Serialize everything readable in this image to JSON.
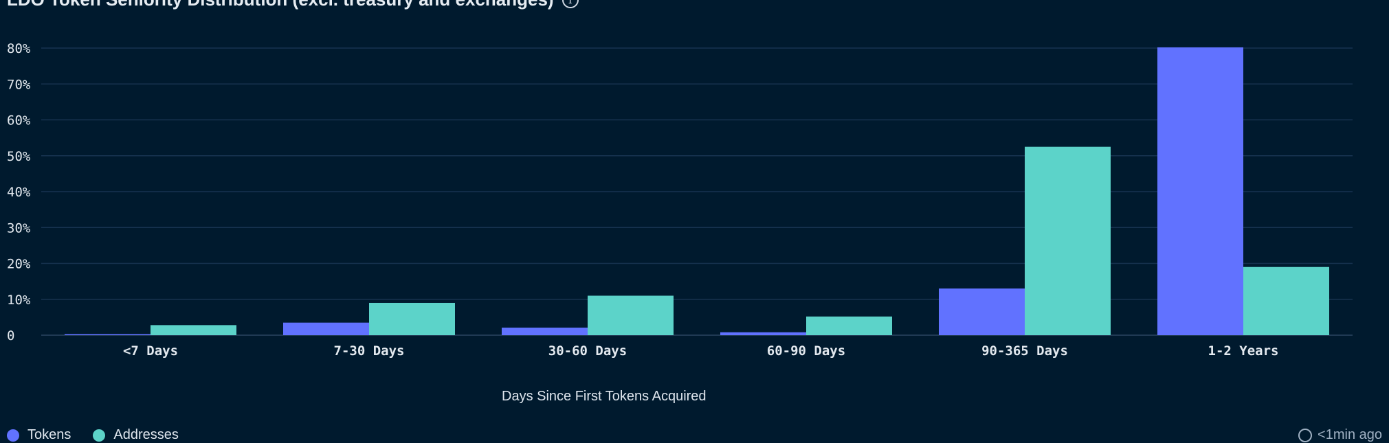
{
  "chart_data": {
    "type": "bar",
    "title": "LDO Token Seniority Distribution (excl. treasury and exchanges)",
    "xlabel": "Days Since First Tokens Acquired",
    "ylabel": "",
    "ylim": [
      0,
      80
    ],
    "yticks": [
      0,
      10,
      20,
      30,
      40,
      50,
      60,
      70,
      80
    ],
    "ytick_labels": [
      "0",
      "10%",
      "20%",
      "30%",
      "40%",
      "50%",
      "60%",
      "70%",
      "80%"
    ],
    "categories": [
      "<7 Days",
      "7-30 Days",
      "30-60 Days",
      "60-90 Days",
      "90-365 Days",
      "1-2 Years"
    ],
    "series": [
      {
        "name": "Tokens",
        "color": "#6172ff",
        "values": [
          0.3,
          3.5,
          2.1,
          0.8,
          13.0,
          80.2
        ]
      },
      {
        "name": "Addresses",
        "color": "#5cd3c9",
        "values": [
          2.8,
          9.0,
          11.0,
          5.2,
          52.5,
          19.0
        ]
      }
    ],
    "grid": true,
    "legend": "bottom-left"
  },
  "footer": {
    "updated": "<1min ago"
  }
}
